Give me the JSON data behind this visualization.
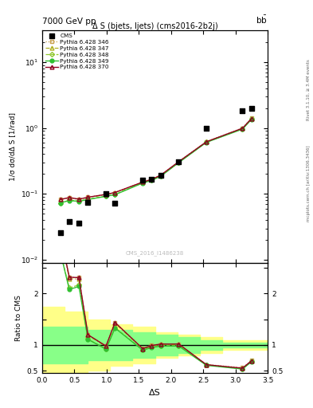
{
  "title_top": "7000 GeV pp",
  "plot_title": "Δ S (bjets, ljets) (cms2016-2b2j)",
  "ylabel_main": "1/σ dσ/dΔ S [1/rad]",
  "ylabel_ratio": "Ratio to CMS",
  "xlabel": "ΔS",
  "right_label": "Rivet 3.1.10, ≥ 3.4M events",
  "right_label2": "mcplots.cern.ch [arXiv:1306.3436]",
  "watermark": "CMS_2016_I1486238",
  "cms_x": [
    0.28,
    0.42,
    0.57,
    0.71,
    0.99,
    1.13,
    1.56,
    1.7,
    1.84,
    2.12,
    2.55,
    3.11,
    3.25
  ],
  "cms_y": [
    0.026,
    0.038,
    0.036,
    0.074,
    0.1,
    0.073,
    0.162,
    0.168,
    0.189,
    0.303,
    1.0,
    1.8,
    2.0
  ],
  "p346_x": [
    0.28,
    0.42,
    0.57,
    0.71,
    0.99,
    1.13,
    1.56,
    1.7,
    1.84,
    2.12,
    2.55,
    3.11,
    3.25
  ],
  "p346_y": [
    0.082,
    0.088,
    0.083,
    0.089,
    0.099,
    0.105,
    0.152,
    0.168,
    0.193,
    0.31,
    0.62,
    1.0,
    1.4
  ],
  "p347_x": [
    0.28,
    0.42,
    0.57,
    0.71,
    0.99,
    1.13,
    1.56,
    1.7,
    1.84,
    2.12,
    2.55,
    3.11,
    3.25
  ],
  "p347_y": [
    0.082,
    0.087,
    0.082,
    0.088,
    0.097,
    0.104,
    0.15,
    0.165,
    0.19,
    0.305,
    0.615,
    0.98,
    1.38
  ],
  "p348_x": [
    0.28,
    0.42,
    0.57,
    0.71,
    0.99,
    1.13,
    1.56,
    1.7,
    1.84,
    2.12,
    2.55,
    3.11,
    3.25
  ],
  "p348_y": [
    0.073,
    0.08,
    0.078,
    0.083,
    0.092,
    0.098,
    0.148,
    0.163,
    0.187,
    0.3,
    0.61,
    0.97,
    1.37
  ],
  "p349_x": [
    0.28,
    0.42,
    0.57,
    0.71,
    0.99,
    1.13,
    1.56,
    1.7,
    1.84,
    2.12,
    2.55,
    3.11,
    3.25
  ],
  "p349_y": [
    0.073,
    0.079,
    0.077,
    0.082,
    0.092,
    0.097,
    0.146,
    0.16,
    0.185,
    0.298,
    0.605,
    0.96,
    1.35
  ],
  "p370_x": [
    0.28,
    0.42,
    0.57,
    0.71,
    0.99,
    1.13,
    1.56,
    1.7,
    1.84,
    2.12,
    2.55,
    3.11,
    3.25
  ],
  "p370_y": [
    0.082,
    0.088,
    0.083,
    0.089,
    0.098,
    0.105,
    0.151,
    0.166,
    0.192,
    0.308,
    0.618,
    0.99,
    1.39
  ],
  "ratio_346": [
    3.15,
    2.32,
    2.31,
    1.2,
    0.99,
    1.44,
    0.94,
    1.0,
    1.02,
    1.02,
    0.62,
    0.56,
    0.7
  ],
  "ratio_347": [
    3.15,
    2.29,
    2.28,
    1.19,
    0.97,
    1.42,
    0.93,
    0.98,
    1.01,
    1.01,
    0.615,
    0.544,
    0.69
  ],
  "ratio_348": [
    2.81,
    2.11,
    2.17,
    1.12,
    0.92,
    1.34,
    0.91,
    0.97,
    0.99,
    0.99,
    0.61,
    0.539,
    0.685
  ],
  "ratio_349": [
    2.81,
    2.08,
    2.14,
    1.11,
    0.92,
    1.33,
    0.9,
    0.95,
    0.98,
    0.98,
    0.605,
    0.533,
    0.675
  ],
  "ratio_370": [
    3.15,
    2.32,
    2.31,
    1.2,
    0.98,
    1.44,
    0.93,
    0.99,
    1.02,
    1.02,
    0.618,
    0.55,
    0.695
  ],
  "green_band_edges": [
    0.0,
    0.35,
    0.7,
    1.05,
    1.4,
    1.75,
    2.1,
    2.45,
    2.8,
    3.15,
    3.5
  ],
  "green_band_top": [
    1.35,
    1.35,
    1.3,
    1.3,
    1.25,
    1.2,
    1.15,
    1.1,
    1.05,
    1.05
  ],
  "green_band_bot": [
    0.65,
    0.65,
    0.7,
    0.7,
    0.75,
    0.8,
    0.85,
    0.9,
    0.95,
    0.95
  ],
  "yellow_band_edges": [
    0.0,
    0.35,
    0.7,
    1.05,
    1.4,
    1.75,
    2.1,
    2.45,
    2.8,
    3.15,
    3.5
  ],
  "yellow_band_top": [
    1.75,
    1.65,
    1.5,
    1.4,
    1.35,
    1.25,
    1.2,
    1.15,
    1.1,
    1.1
  ],
  "yellow_band_bot": [
    0.25,
    0.35,
    0.5,
    0.6,
    0.65,
    0.75,
    0.8,
    0.85,
    0.9,
    0.9
  ],
  "color_346": "#c8a050",
  "color_347": "#b0b020",
  "color_348": "#90c830",
  "color_349": "#30c030",
  "color_370": "#900020",
  "ylim_main": [
    0.009,
    30
  ],
  "ylim_ratio": [
    0.45,
    2.6
  ],
  "xlim": [
    0.0,
    3.5
  ]
}
